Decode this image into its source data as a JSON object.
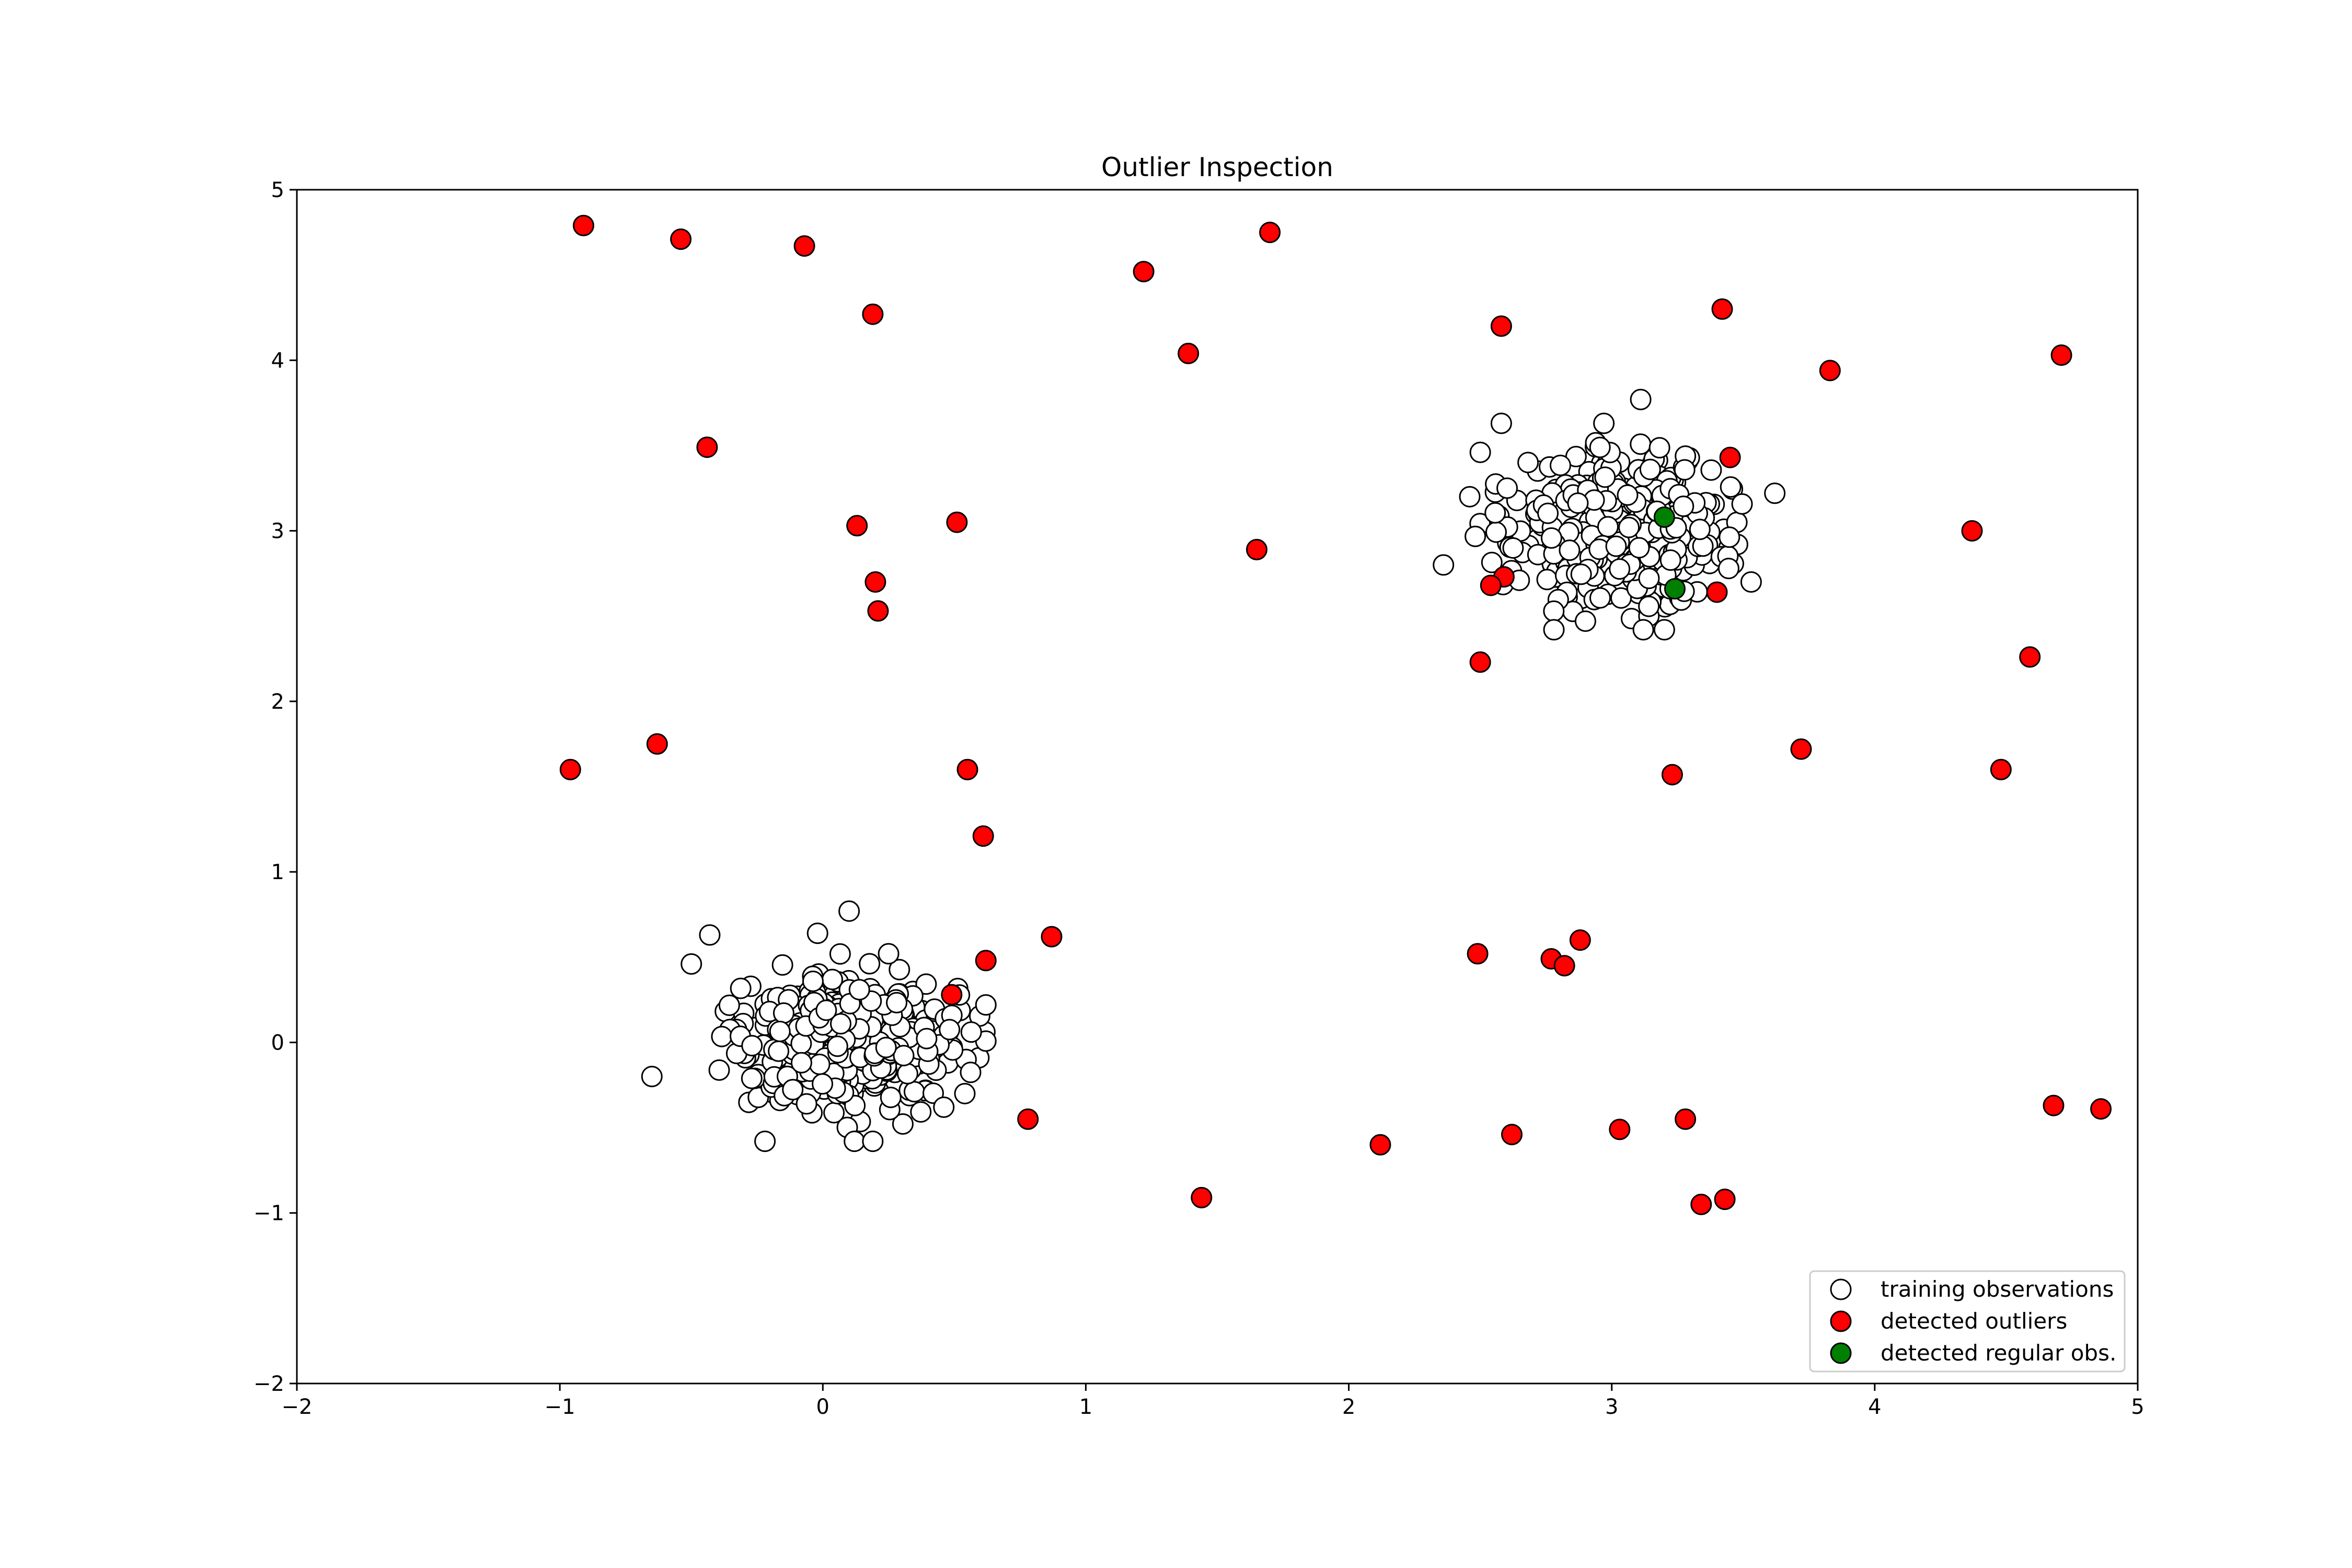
{
  "chart_data": {
    "type": "scatter",
    "title": "Outlier Inspection",
    "xlabel": "",
    "ylabel": "",
    "xlim": [
      -2,
      5
    ],
    "ylim": [
      -2,
      5
    ],
    "xticks": [
      "−2",
      "−1",
      "0",
      "1",
      "2",
      "3",
      "4",
      "5"
    ],
    "yticks": [
      "−2",
      "−1",
      "0",
      "1",
      "2",
      "3",
      "4",
      "5"
    ],
    "xtick_values": [
      -2,
      -1,
      0,
      1,
      2,
      3,
      4,
      5
    ],
    "ytick_values": [
      -2,
      -1,
      0,
      1,
      2,
      3,
      4,
      5
    ],
    "grid": false,
    "legend": {
      "position": "lower-right"
    },
    "colors": {
      "training": "#ffffff",
      "outliers": "#ff0000",
      "regular": "#008000",
      "edge": "#000000"
    },
    "series": [
      {
        "name": "training observations",
        "clusters": [
          {
            "center": [
              0.1,
              0.0
            ],
            "spread": 0.2,
            "count": 500
          },
          {
            "center": [
              3.0,
              3.0
            ],
            "spread": 0.2,
            "count": 500
          }
        ],
        "x": [
          -0.65,
          -0.43,
          -0.02,
          0.1,
          0.62,
          0.54,
          -0.5,
          0.25,
          0.12,
          -0.22,
          0.19,
          0.46,
          3.11,
          2.97,
          2.58,
          2.5,
          3.62,
          2.36,
          2.46,
          3.53,
          2.78,
          3.12,
          3.2,
          2.9
        ],
        "y": [
          -0.2,
          0.63,
          0.64,
          0.77,
          0.22,
          -0.3,
          0.46,
          0.52,
          -0.58,
          -0.58,
          -0.58,
          -0.38,
          3.77,
          3.63,
          3.63,
          3.46,
          3.22,
          2.8,
          3.2,
          2.7,
          2.42,
          2.42,
          2.42,
          2.47
        ]
      },
      {
        "name": "detected outliers",
        "x": [
          -0.91,
          -0.54,
          -0.07,
          0.19,
          -0.44,
          0.13,
          0.51,
          0.2,
          0.21,
          -0.96,
          -0.63,
          0.55,
          0.61,
          0.62,
          0.49,
          0.87,
          0.78,
          1.22,
          1.7,
          1.39,
          1.65,
          1.44,
          2.58,
          3.42,
          3.83,
          4.71,
          3.45,
          4.37,
          2.59,
          2.54,
          3.4,
          2.5,
          4.59,
          3.72,
          3.23,
          4.48,
          2.88,
          2.77,
          2.82,
          2.49,
          2.12,
          2.62,
          3.03,
          3.28,
          4.68,
          4.86,
          3.34,
          3.43
        ],
        "y": [
          4.79,
          4.71,
          4.67,
          4.27,
          3.49,
          3.03,
          3.05,
          2.7,
          2.53,
          1.6,
          1.75,
          1.6,
          1.21,
          0.48,
          0.28,
          0.62,
          -0.45,
          4.52,
          4.75,
          4.04,
          2.89,
          -0.91,
          4.2,
          4.3,
          3.94,
          4.03,
          3.43,
          3.0,
          2.73,
          2.68,
          2.64,
          2.23,
          2.26,
          1.72,
          1.57,
          1.6,
          0.6,
          0.49,
          0.45,
          0.52,
          -0.6,
          -0.54,
          -0.51,
          -0.45,
          -0.37,
          -0.39,
          -0.95,
          -0.92
        ]
      },
      {
        "name": "detected regular obs.",
        "x": [
          3.2,
          3.24
        ],
        "y": [
          3.08,
          2.66
        ]
      }
    ]
  }
}
